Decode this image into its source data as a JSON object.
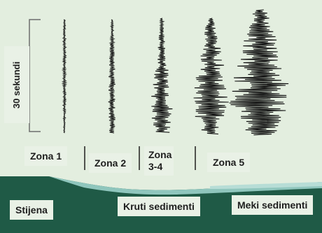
{
  "duration_label": "30 sekundi",
  "zones": [
    {
      "id": "zone-1",
      "label": "Zona 1"
    },
    {
      "id": "zone-2",
      "label": "Zona 2"
    },
    {
      "id": "zone-3-4",
      "label": "Zona 3-4"
    },
    {
      "id": "zone-5",
      "label": "Zona 5"
    }
  ],
  "ground_layers": {
    "rock": "Stijena",
    "stiff_sediments": "Kruti sedimenti",
    "soft_sediments": "Meki sedimenti"
  },
  "colors": {
    "background": "#e3eedf",
    "waveform": "#111111",
    "rock": "#1f5a46",
    "sediment_band": "#8fc6bd",
    "label_bg": "#e9f1e6"
  }
}
